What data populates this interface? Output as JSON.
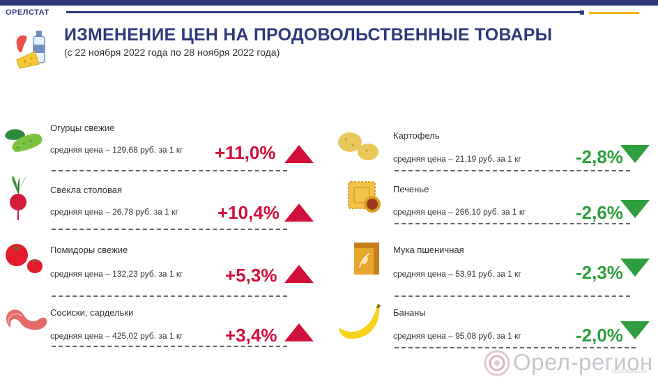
{
  "header": {
    "brand": "ОРЕЛСТАТ",
    "title": "ИЗМЕНЕНИЕ ЦЕН НА ПРОДОВОЛЬСТВЕННЫЕ ТОВАРЫ",
    "subtitle": "(с 22 ноября 2022 года по 28 ноября 2022 года)",
    "accent_color": "#2e3a7c",
    "accent_secondary": "#f0b400"
  },
  "colors": {
    "increase": "#d0103a",
    "decrease": "#2e9e3e"
  },
  "left_items": [
    {
      "name": "Огурцы свежие",
      "price": "средняя цена – 129,68 руб. за 1 кг",
      "change": "+11,0%",
      "direction": "up",
      "icon": "cucumber-icon"
    },
    {
      "name": "Свёкла столовая",
      "price": "средняя цена – 26,78 руб. за 1 кг",
      "change": "+10,4%",
      "direction": "up",
      "icon": "beet-icon"
    },
    {
      "name": "Помидоры свежие",
      "price": "средняя цена – 132,23 руб. за 1 кг",
      "change": "+5,3%",
      "direction": "up",
      "icon": "tomato-icon"
    },
    {
      "name": "Сосиски, сардельки",
      "price": "средняя цена – 425,02 руб. за 1 кг",
      "change": "+3,4%",
      "direction": "up",
      "icon": "sausage-icon"
    }
  ],
  "right_items": [
    {
      "name": "Картофель",
      "price": "средняя цена – 21,19 руб. за 1 кг",
      "change": "-2,8%",
      "direction": "down",
      "icon": "potato-icon"
    },
    {
      "name": "Печенье",
      "price": "средняя цена –  266,10 руб. за 1 кг",
      "change": "-2,6%",
      "direction": "down",
      "icon": "cookie-icon"
    },
    {
      "name": "Мука пшеничная",
      "price": "средняя цена – 53,91 руб. за 1 кг",
      "change": "-2,3%",
      "direction": "down",
      "icon": "flour-bag-icon"
    },
    {
      "name": "Бананы",
      "price": "средняя цена – 95,08 руб. за 1 кг",
      "change": "-2,0%",
      "direction": "down",
      "icon": "banana-icon"
    }
  ],
  "watermark": {
    "text": "Орел-регион",
    "site": "REGIONOREL.RU"
  }
}
